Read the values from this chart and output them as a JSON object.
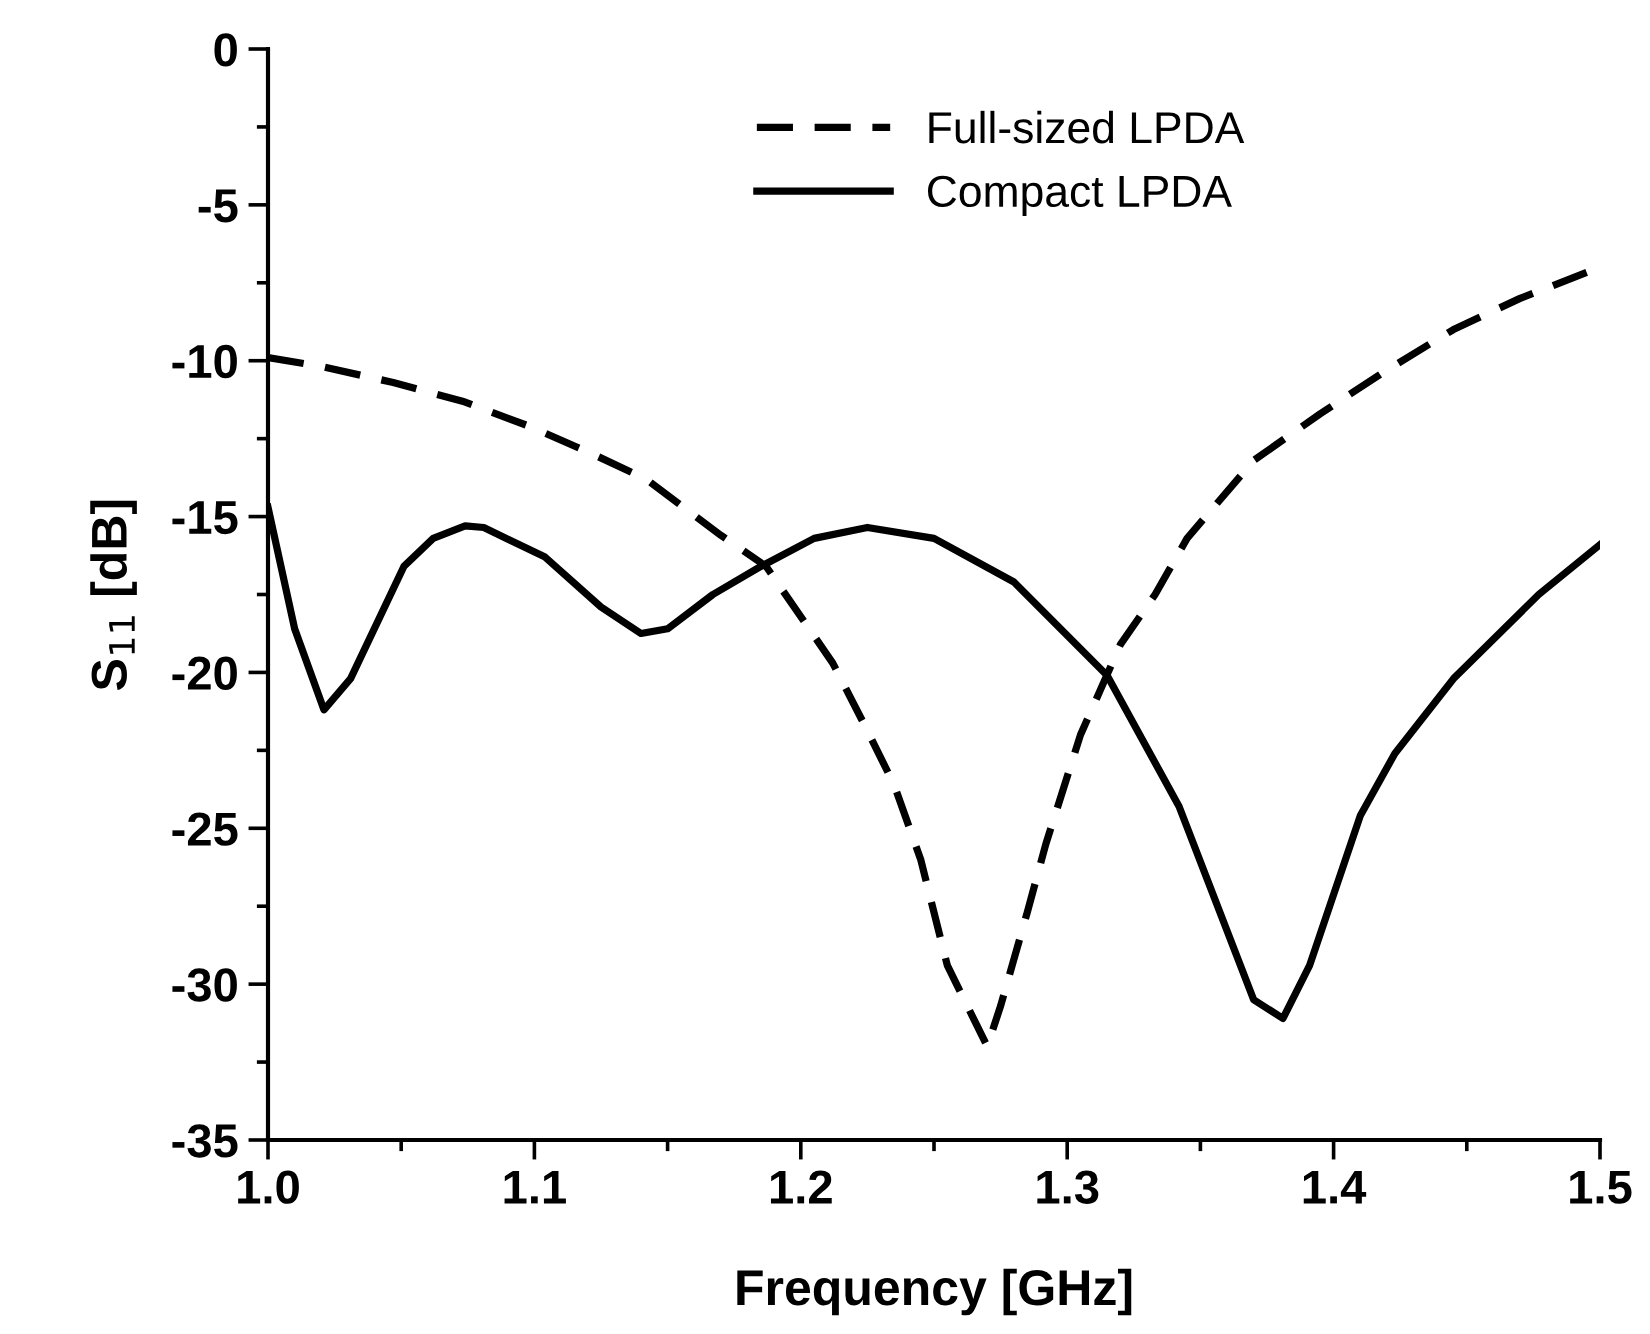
{
  "chart_data": {
    "type": "line",
    "xlabel": "Frequency [GHz]",
    "ylabel": "S$_{11}$ [dB]",
    "xlim": [
      1.0,
      1.5
    ],
    "xticks": [
      {
        "value": 1.0,
        "label": "1.0"
      },
      1.1,
      1.2,
      1.3,
      1.4,
      {
        "value": 1.5,
        "label": "1.5"
      }
    ],
    "ylim": [
      -35,
      0
    ],
    "yticks": [
      -35,
      -30,
      -25,
      -20,
      -15,
      -10,
      -5,
      0
    ],
    "grid": false,
    "legend": "top",
    "marker": "none",
    "series": [
      {
        "name": "Full-sized LPDA",
        "color": "#000000",
        "line_style": "dashed",
        "x": [
          1.0,
          1.021,
          1.047,
          1.073,
          1.098,
          1.122,
          1.142,
          1.17,
          1.187,
          1.212,
          1.224,
          1.235,
          1.245,
          1.255,
          1.27,
          1.275,
          1.285,
          1.292,
          1.305,
          1.32,
          1.333,
          1.345,
          1.37,
          1.395,
          1.42,
          1.445,
          1.47,
          1.5
        ],
        "values": [
          -9.9,
          -10.2,
          -10.7,
          -11.3,
          -12.1,
          -13.0,
          -13.8,
          -15.6,
          -16.6,
          -19.7,
          -21.7,
          -23.6,
          -26.0,
          -29.4,
          -32.0,
          -30.7,
          -27.7,
          -25.5,
          -22.0,
          -19.1,
          -17.5,
          -15.7,
          -13.2,
          -11.7,
          -10.3,
          -9.0,
          -8.0,
          -7.0
        ]
      },
      {
        "name": "Compact LPDA",
        "color": "#000000",
        "line_style": "solid",
        "x": [
          1.0,
          1.01,
          1.021,
          1.031,
          1.051,
          1.062,
          1.074,
          1.081,
          1.104,
          1.125,
          1.14,
          1.15,
          1.167,
          1.185,
          1.205,
          1.225,
          1.25,
          1.28,
          1.315,
          1.342,
          1.37,
          1.381,
          1.391,
          1.41,
          1.423,
          1.445,
          1.477,
          1.5
        ],
        "values": [
          -14.7,
          -18.6,
          -21.2,
          -20.2,
          -16.6,
          -15.7,
          -15.3,
          -15.35,
          -16.3,
          -17.9,
          -18.75,
          -18.6,
          -17.5,
          -16.6,
          -15.7,
          -15.35,
          -15.7,
          -17.1,
          -20.1,
          -24.3,
          -30.5,
          -31.1,
          -29.4,
          -24.6,
          -22.6,
          -20.2,
          -17.5,
          -15.9
        ]
      }
    ]
  }
}
